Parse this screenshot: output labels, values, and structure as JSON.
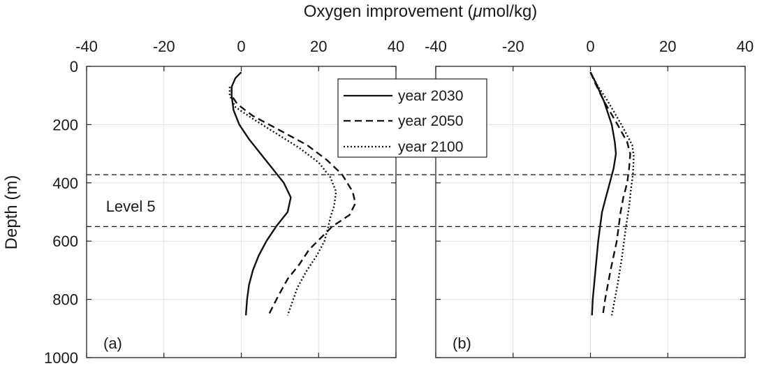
{
  "chart_data": {
    "type": "line",
    "xlabel": "Oxygen improvement (μmol/kg)",
    "xlabel_parts": {
      "prefix": "Oxygen improvement (",
      "symbol": "μ",
      "suffix": "mol/kg)"
    },
    "ylabel": "Depth (m)",
    "xlim": [
      -40,
      40
    ],
    "ylim": [
      0,
      1000
    ],
    "y_reversed": true,
    "xticks": [
      -40,
      -20,
      0,
      20,
      40
    ],
    "yticks": [
      0,
      200,
      400,
      600,
      800,
      1000
    ],
    "grid": true,
    "legend_placement": "top-right of panel (a)",
    "legend": [
      {
        "label": "year 2030",
        "style": "solid"
      },
      {
        "label": "year 2050",
        "style": "dashed"
      },
      {
        "label": "year 2100",
        "style": "dotted"
      }
    ],
    "reference_lines": {
      "depths": [
        372,
        550
      ],
      "label": "Level 5",
      "label_depth": 480,
      "label_x": -35
    },
    "panels": [
      {
        "label": "(a)",
        "series": [
          {
            "name": "year 2030",
            "style": "solid",
            "points": [
              [
                0,
                20
              ],
              [
                -1.5,
                40
              ],
              [
                -2.5,
                70
              ],
              [
                -2.5,
                100
              ],
              [
                -2,
                150
              ],
              [
                -0.5,
                200
              ],
              [
                2,
                250
              ],
              [
                5,
                300
              ],
              [
                8,
                350
              ],
              [
                11,
                400
              ],
              [
                12.8,
                450
              ],
              [
                12,
                500
              ],
              [
                9,
                550
              ],
              [
                6.5,
                600
              ],
              [
                4.5,
                650
              ],
              [
                3,
                700
              ],
              [
                2,
                750
              ],
              [
                1.5,
                800
              ],
              [
                1.2,
                855
              ]
            ]
          },
          {
            "name": "year 2050",
            "style": "dashed",
            "points": [
              [
                -2.5,
                70
              ],
              [
                -2.5,
                100
              ],
              [
                -1,
                130
              ],
              [
                3,
                170
              ],
              [
                10,
                220
              ],
              [
                17,
                270
              ],
              [
                22,
                320
              ],
              [
                26,
                370
              ],
              [
                28.8,
                430
              ],
              [
                29.5,
                470
              ],
              [
                28,
                510
              ],
              [
                23.5,
                550
              ],
              [
                20.5,
                590
              ],
              [
                17.5,
                630
              ],
              [
                15,
                680
              ],
              [
                12,
                730
              ],
              [
                9.5,
                790
              ],
              [
                7,
                855
              ]
            ]
          },
          {
            "name": "year 2100",
            "style": "dotted",
            "points": [
              [
                -3,
                70
              ],
              [
                -3,
                100
              ],
              [
                -1.5,
                140
              ],
              [
                3,
                180
              ],
              [
                9,
                230
              ],
              [
                15,
                280
              ],
              [
                20,
                330
              ],
              [
                23,
                380
              ],
              [
                24.5,
                430
              ],
              [
                24,
                480
              ],
              [
                23,
                520
              ],
              [
                22.5,
                550
              ],
              [
                21.5,
                600
              ],
              [
                19.5,
                650
              ],
              [
                17,
                700
              ],
              [
                14.5,
                760
              ],
              [
                12,
                855
              ]
            ]
          }
        ]
      },
      {
        "label": "(b)",
        "series": [
          {
            "name": "year 2030",
            "style": "solid",
            "points": [
              [
                0,
                20
              ],
              [
                1.5,
                60
              ],
              [
                3.5,
                120
              ],
              [
                5.5,
                200
              ],
              [
                6.3,
                260
              ],
              [
                6.6,
                300
              ],
              [
                6,
                350
              ],
              [
                5,
                400
              ],
              [
                4,
                450
              ],
              [
                3,
                500
              ],
              [
                2,
                600
              ],
              [
                1.3,
                700
              ],
              [
                0.6,
                800
              ],
              [
                0.4,
                855
              ]
            ]
          },
          {
            "name": "year 2050",
            "style": "dashed",
            "points": [
              [
                0,
                20
              ],
              [
                1.3,
                60
              ],
              [
                3.5,
                120
              ],
              [
                7,
                200
              ],
              [
                9.5,
                260
              ],
              [
                10.3,
                300
              ],
              [
                10,
                350
              ],
              [
                9.5,
                400
              ],
              [
                8.5,
                450
              ],
              [
                7.8,
                500
              ],
              [
                6.8,
                600
              ],
              [
                5.2,
                700
              ],
              [
                3.8,
                800
              ],
              [
                3.2,
                855
              ]
            ]
          },
          {
            "name": "year 2100",
            "style": "dotted",
            "points": [
              [
                0,
                20
              ],
              [
                2,
                70
              ],
              [
                4.5,
                120
              ],
              [
                8,
                200
              ],
              [
                10.8,
                270
              ],
              [
                11.2,
                310
              ],
              [
                11,
                370
              ],
              [
                10.5,
                420
              ],
              [
                10,
                480
              ],
              [
                9.2,
                550
              ],
              [
                8.2,
                650
              ],
              [
                7,
                750
              ],
              [
                5.5,
                855
              ]
            ]
          }
        ]
      }
    ]
  }
}
